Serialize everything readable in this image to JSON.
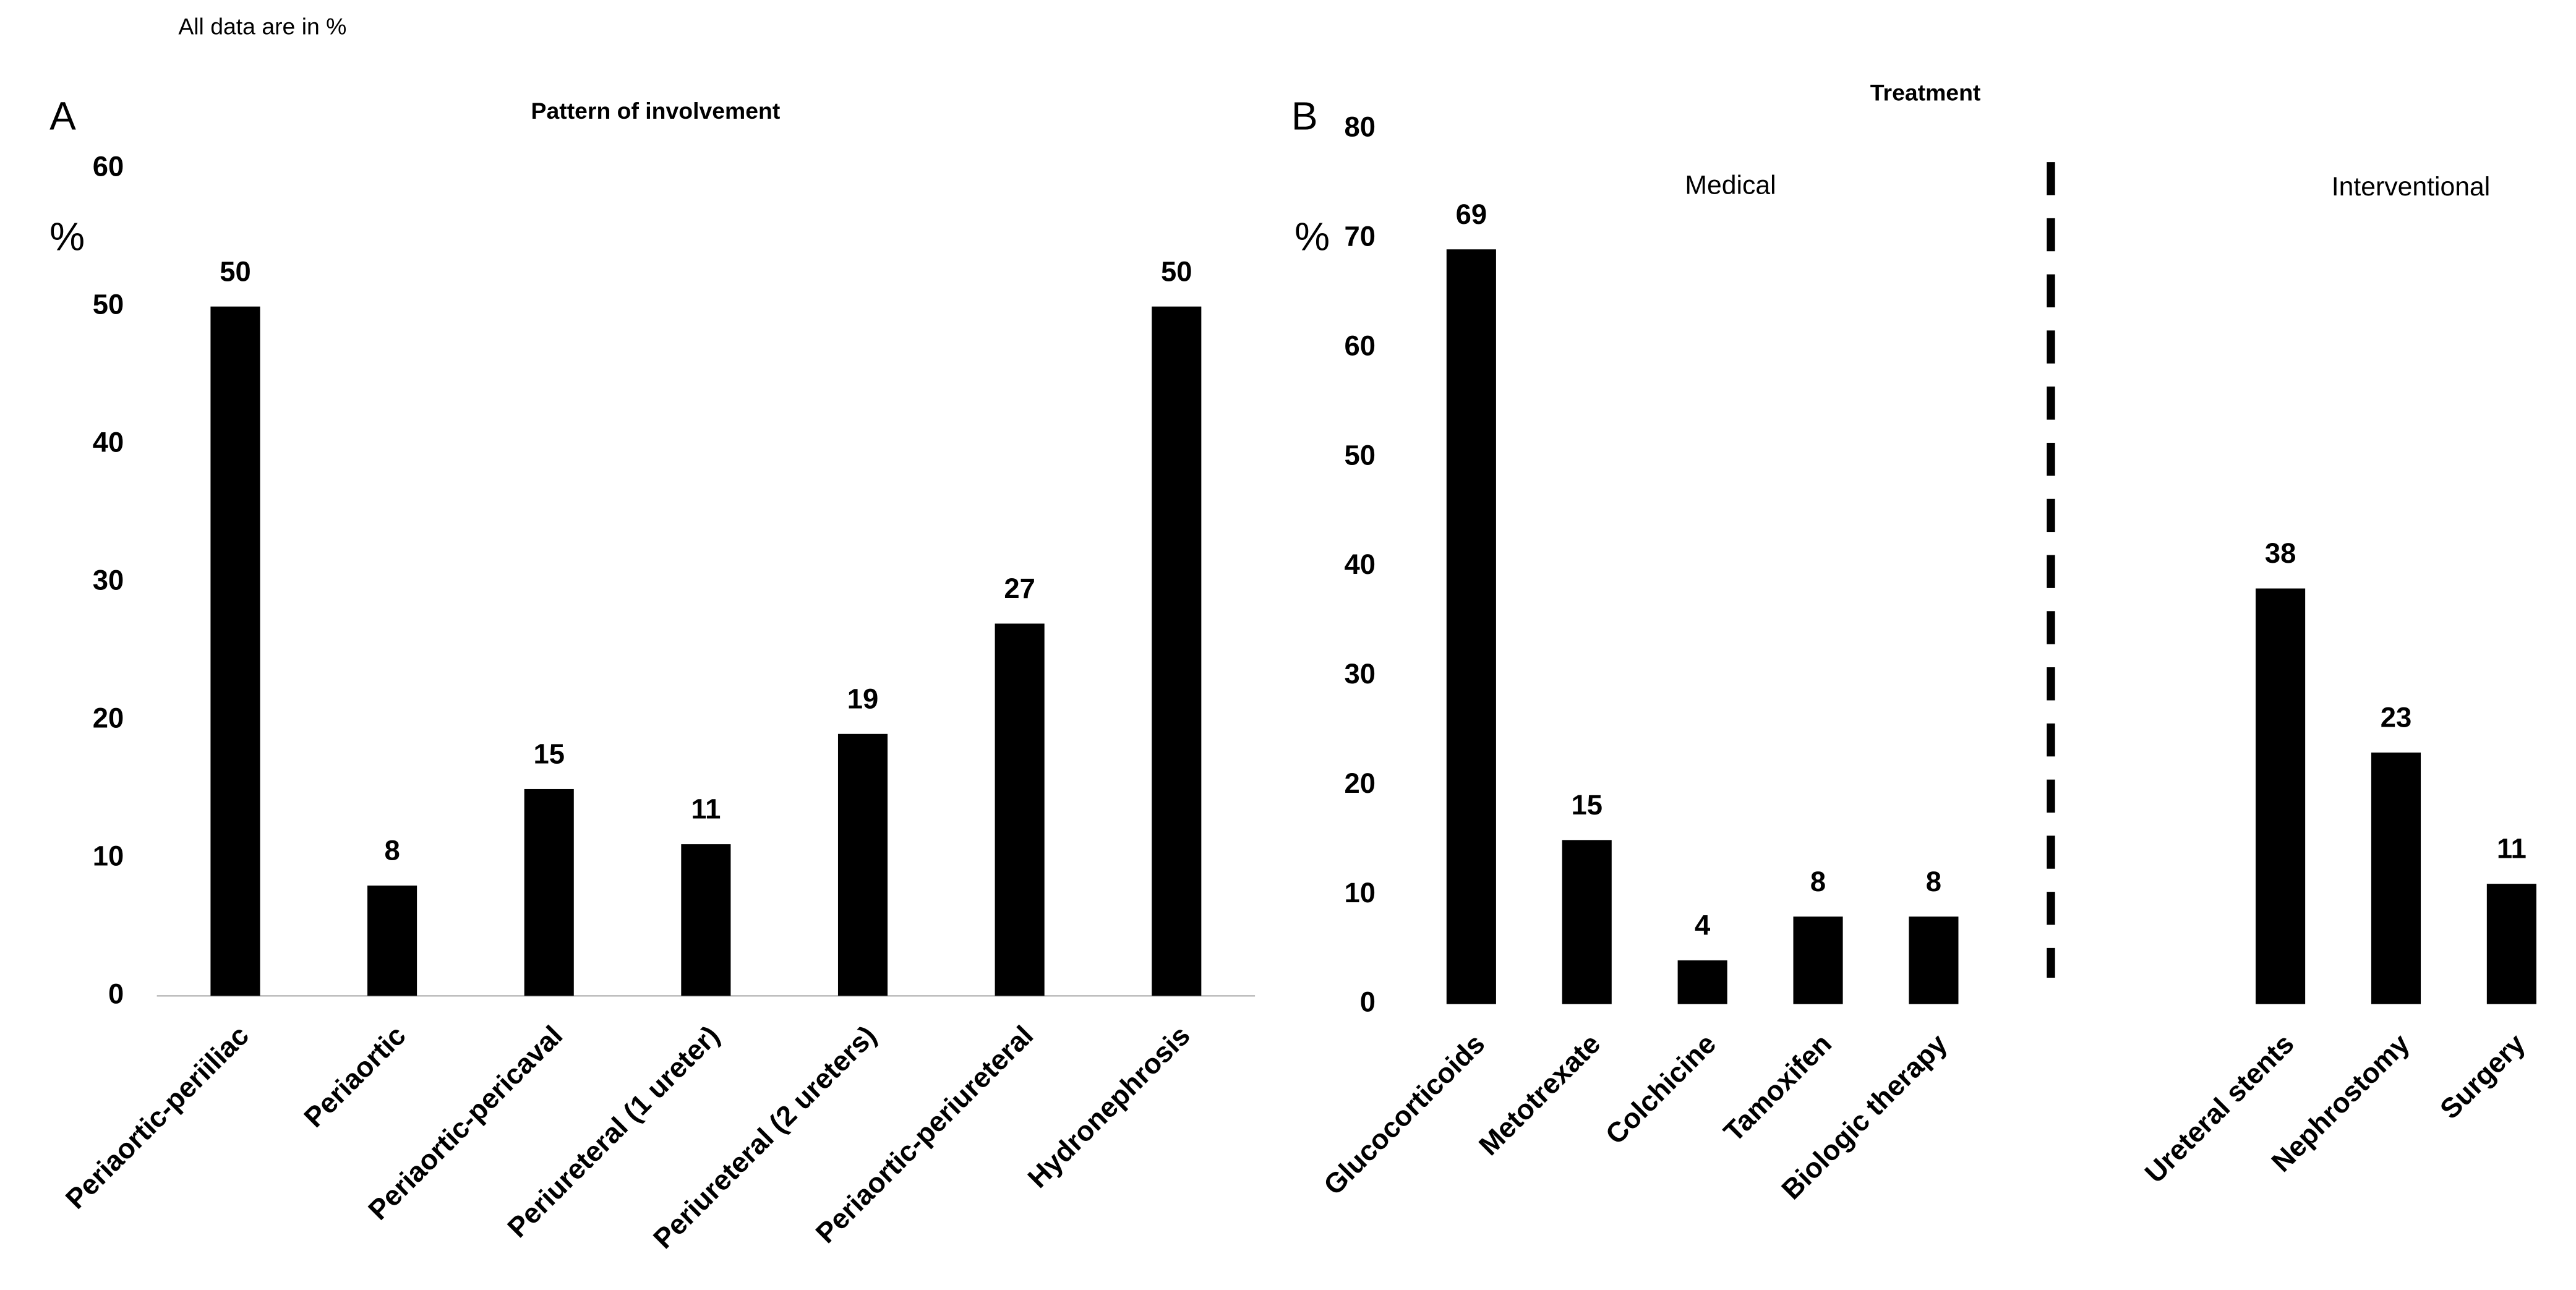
{
  "note": "All data are in %",
  "chart_data": [
    {
      "type": "bar",
      "panel": "A",
      "title": "Pattern of involvement",
      "y_label": "%",
      "categories": [
        "Periaortic-periiliac",
        "Periaortic",
        "Periaortic-pericaval",
        "Periureteral (1 ureter)",
        "Periureteral (2 ureters)",
        "Periaortic-periureteral",
        "Hydronephrosis"
      ],
      "values": [
        50,
        8,
        15,
        11,
        19,
        27,
        50
      ],
      "color": "#000000",
      "ylim": [
        0,
        60
      ],
      "yticks": [
        0,
        10,
        20,
        30,
        40,
        50,
        60
      ],
      "axis_line": true
    },
    {
      "type": "bar",
      "panel": "B",
      "title": "Treatment",
      "y_label": "%",
      "annotations": [
        "Medical",
        "Interventional"
      ],
      "categories": [
        "Glucocorticoids",
        "Metotrexate",
        "Colchicine",
        "Tamoxifen",
        "Biologic therapy",
        null,
        null,
        "Ureteral stents",
        "Nephrostomy",
        "Surgery"
      ],
      "values": [
        69,
        15,
        4,
        8,
        8,
        null,
        null,
        38,
        23,
        11
      ],
      "color": "#000000",
      "ylim": [
        0,
        80
      ],
      "yticks": [
        0,
        10,
        20,
        30,
        40,
        50,
        60,
        70,
        80
      ],
      "axis_line": false
    }
  ]
}
